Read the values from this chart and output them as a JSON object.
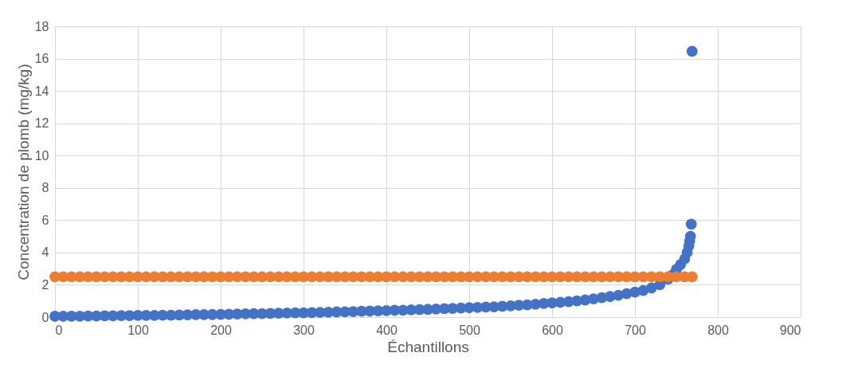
{
  "chart_data": {
    "type": "scatter",
    "xlabel": "Échantillons",
    "ylabel": "Concentration de plomb (mg/kg)",
    "xlim": [
      0,
      900
    ],
    "xticks": [
      0,
      100,
      200,
      300,
      400,
      500,
      600,
      700,
      800,
      900
    ],
    "ylim": [
      0,
      18
    ],
    "yticks": [
      0,
      2,
      4,
      6,
      8,
      10,
      12,
      14,
      16,
      18
    ],
    "grid": true,
    "legend": false,
    "marker": "circle",
    "series": [
      {
        "color": "#4472c4",
        "x": [
          0,
          10,
          20,
          30,
          40,
          50,
          60,
          70,
          80,
          90,
          100,
          110,
          120,
          130,
          140,
          150,
          160,
          170,
          180,
          190,
          200,
          210,
          220,
          230,
          240,
          250,
          260,
          270,
          280,
          290,
          300,
          310,
          320,
          330,
          340,
          350,
          360,
          370,
          380,
          390,
          400,
          410,
          420,
          430,
          440,
          450,
          460,
          470,
          480,
          490,
          500,
          510,
          520,
          530,
          540,
          550,
          560,
          570,
          580,
          590,
          600,
          610,
          620,
          630,
          640,
          650,
          660,
          670,
          680,
          690,
          700,
          710,
          720,
          730,
          740,
          745,
          750,
          755,
          760,
          763,
          765,
          766,
          767,
          768,
          769
        ],
        "values": [
          0.05,
          0.05,
          0.06,
          0.06,
          0.07,
          0.07,
          0.08,
          0.08,
          0.09,
          0.09,
          0.1,
          0.1,
          0.11,
          0.12,
          0.12,
          0.13,
          0.14,
          0.15,
          0.15,
          0.16,
          0.17,
          0.18,
          0.19,
          0.2,
          0.21,
          0.22,
          0.23,
          0.24,
          0.25,
          0.26,
          0.27,
          0.28,
          0.29,
          0.3,
          0.32,
          0.33,
          0.34,
          0.36,
          0.37,
          0.39,
          0.4,
          0.42,
          0.43,
          0.45,
          0.46,
          0.48,
          0.5,
          0.52,
          0.54,
          0.56,
          0.58,
          0.6,
          0.62,
          0.64,
          0.67,
          0.7,
          0.73,
          0.76,
          0.8,
          0.84,
          0.88,
          0.92,
          0.96,
          1.0,
          1.06,
          1.13,
          1.2,
          1.27,
          1.35,
          1.45,
          1.55,
          1.65,
          1.8,
          2.0,
          2.35,
          2.6,
          2.95,
          3.25,
          3.6,
          4.0,
          4.4,
          4.7,
          5.0,
          5.75,
          16.45
        ]
      },
      {
        "color": "#ed7d31",
        "x": [
          0,
          10,
          20,
          30,
          40,
          50,
          60,
          70,
          80,
          90,
          100,
          110,
          120,
          130,
          140,
          150,
          160,
          170,
          180,
          190,
          200,
          210,
          220,
          230,
          240,
          250,
          260,
          270,
          280,
          290,
          300,
          310,
          320,
          330,
          340,
          350,
          360,
          370,
          380,
          390,
          400,
          410,
          420,
          430,
          440,
          450,
          460,
          470,
          480,
          490,
          500,
          510,
          520,
          530,
          540,
          550,
          560,
          570,
          580,
          590,
          600,
          610,
          620,
          630,
          640,
          650,
          660,
          670,
          680,
          690,
          700,
          710,
          720,
          730,
          740,
          750,
          760,
          769
        ],
        "values": [
          2.5,
          2.5,
          2.5,
          2.5,
          2.5,
          2.5,
          2.5,
          2.5,
          2.5,
          2.5,
          2.5,
          2.5,
          2.5,
          2.5,
          2.5,
          2.5,
          2.5,
          2.5,
          2.5,
          2.5,
          2.5,
          2.5,
          2.5,
          2.5,
          2.5,
          2.5,
          2.5,
          2.5,
          2.5,
          2.5,
          2.5,
          2.5,
          2.5,
          2.5,
          2.5,
          2.5,
          2.5,
          2.5,
          2.5,
          2.5,
          2.5,
          2.5,
          2.5,
          2.5,
          2.5,
          2.5,
          2.5,
          2.5,
          2.5,
          2.5,
          2.5,
          2.5,
          2.5,
          2.5,
          2.5,
          2.5,
          2.5,
          2.5,
          2.5,
          2.5,
          2.5,
          2.5,
          2.5,
          2.5,
          2.5,
          2.5,
          2.5,
          2.5,
          2.5,
          2.5,
          2.5,
          2.5,
          2.5,
          2.5,
          2.5,
          2.5,
          2.5,
          2.5
        ]
      }
    ]
  }
}
